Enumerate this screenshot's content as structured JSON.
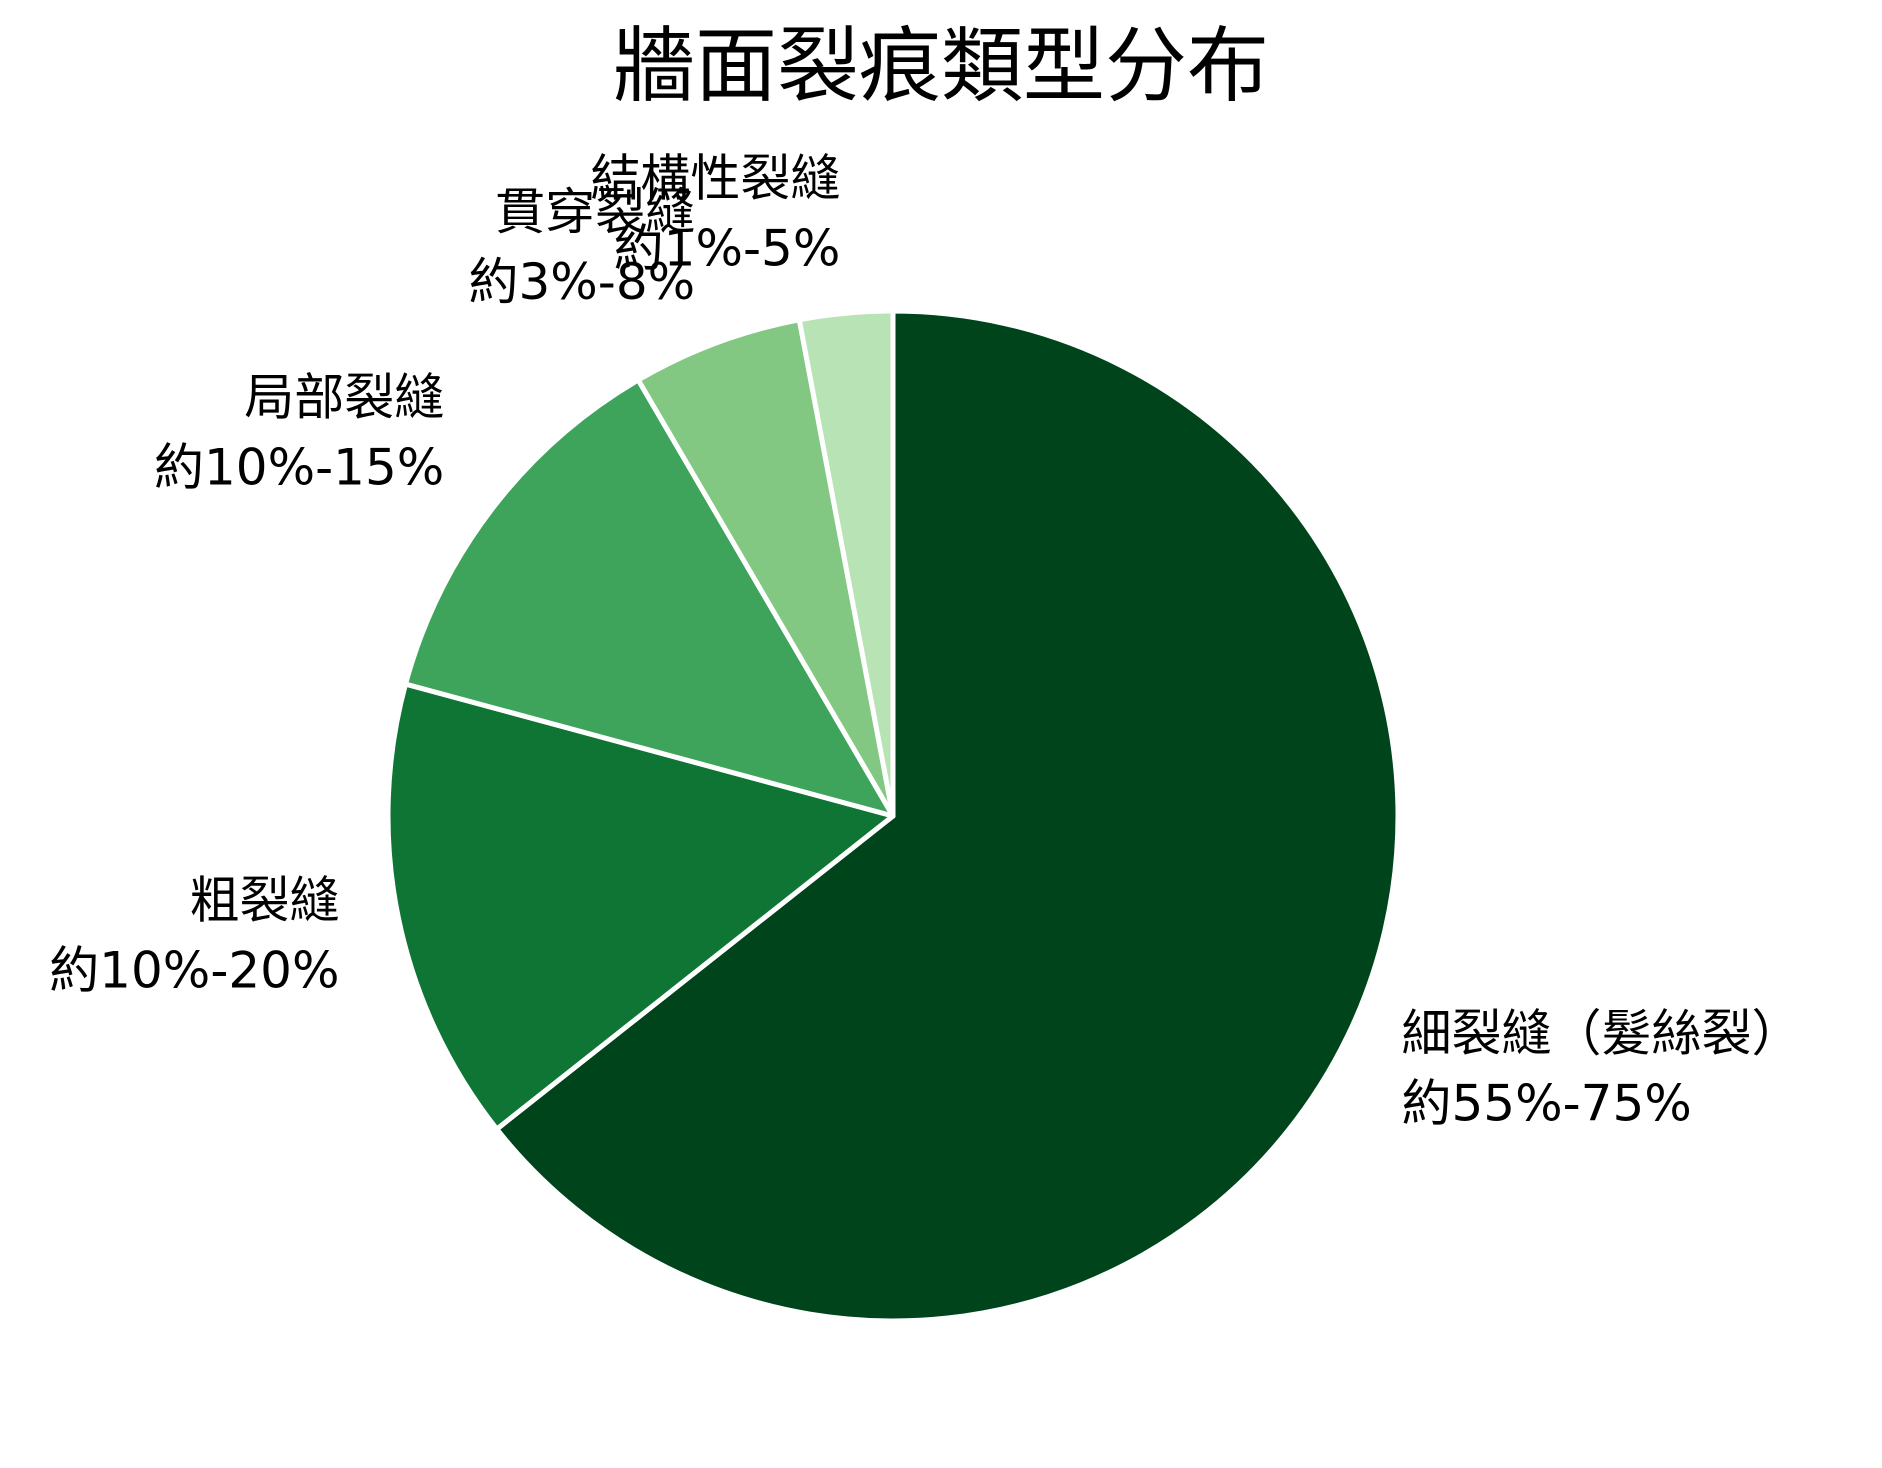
{
  "chart_data": {
    "type": "pie",
    "title": "牆面裂痕類型分布",
    "start_angle": "12 o'clock",
    "direction": "clockwise",
    "colors": [
      "#00441b",
      "#0e7535",
      "#3fa45b",
      "#82c882",
      "#b8e3b4"
    ],
    "slice_border_color": "#ffffff",
    "slices": [
      {
        "name": "細裂縫（髮絲裂）",
        "range_label": "約55%-75%",
        "value": 65
      },
      {
        "name": "粗裂縫",
        "range_label": "約10%-20%",
        "value": 15
      },
      {
        "name": "局部裂縫",
        "range_label": "約10%-15%",
        "value": 12.5
      },
      {
        "name": "貫穿裂縫",
        "range_label": "約3%-8%",
        "value": 5.5
      },
      {
        "name": "結構性裂縫",
        "range_label": "約1%-5%",
        "value": 3
      }
    ]
  }
}
